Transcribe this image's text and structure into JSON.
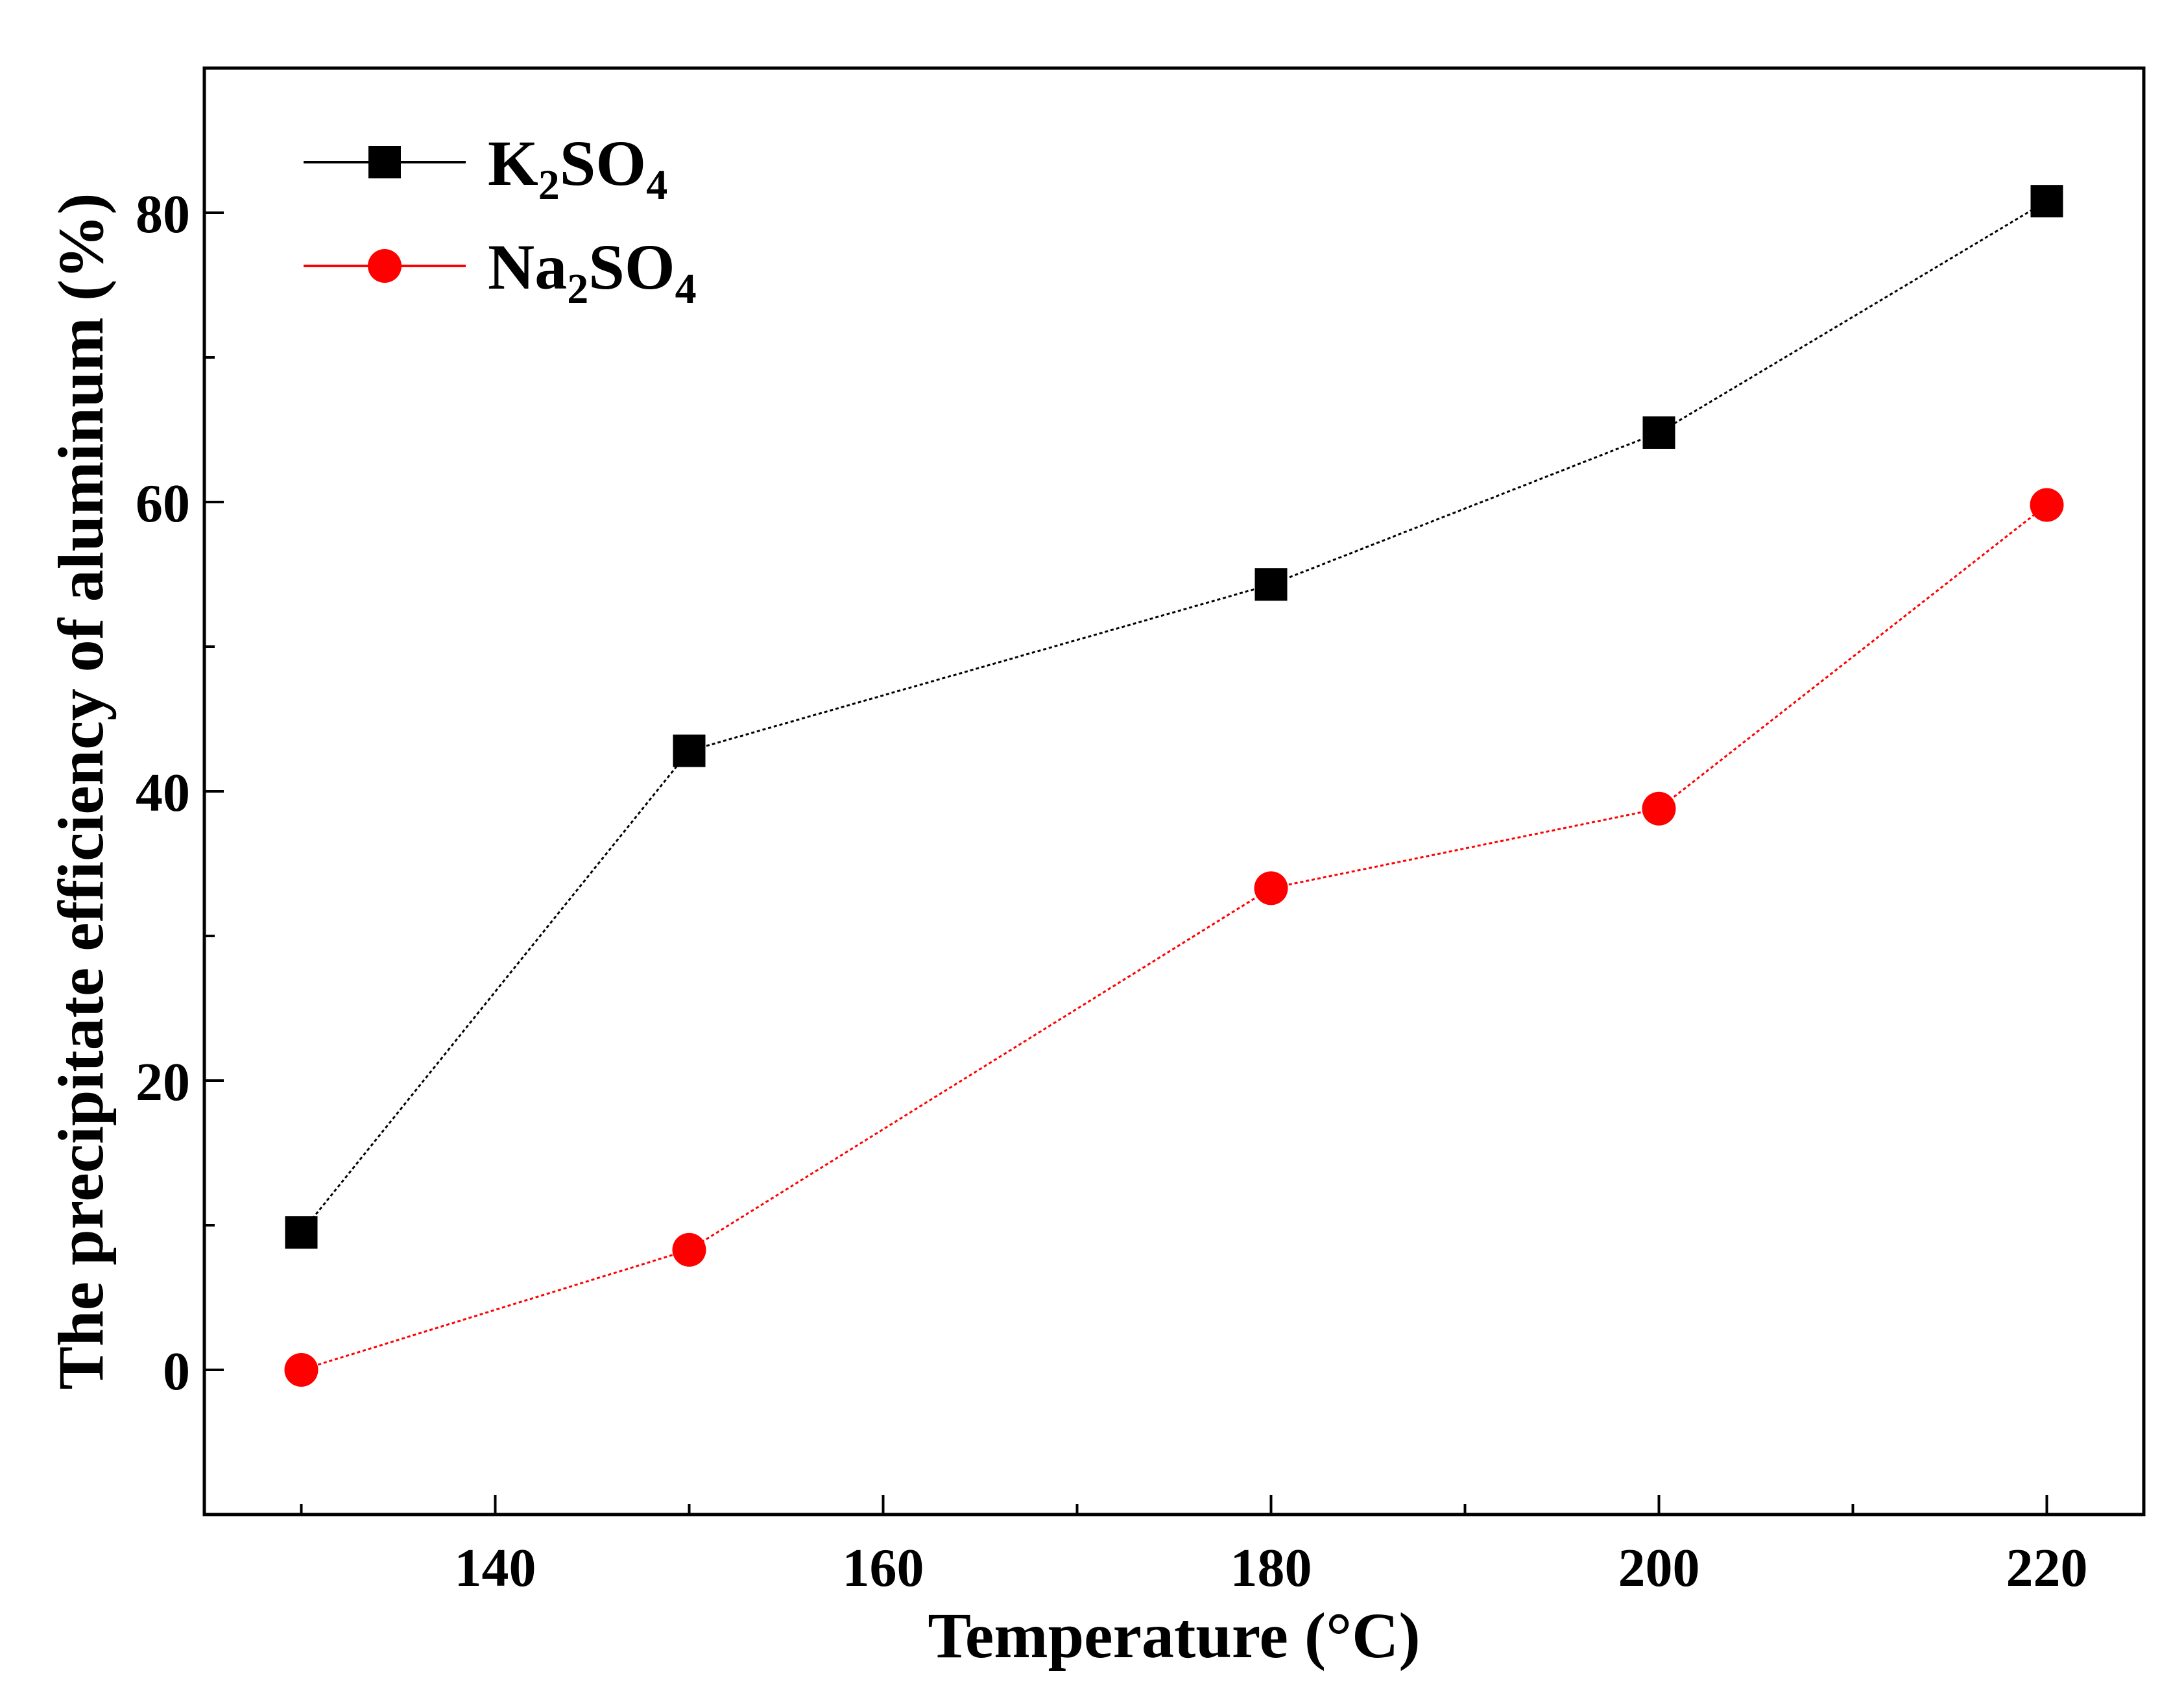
{
  "chart_data": {
    "type": "line",
    "title": "",
    "xlabel": "Temperature (°C)",
    "ylabel": "The precipitate efficiency of aluminum (%)",
    "xlim": [
      125,
      225
    ],
    "ylim": [
      -10,
      90
    ],
    "x_ticks": [
      140,
      160,
      180,
      200,
      220
    ],
    "x_minor_ticks": [
      130,
      150,
      170,
      190,
      210
    ],
    "y_ticks": [
      0,
      20,
      40,
      60,
      80
    ],
    "y_minor_ticks": [
      10,
      30,
      50,
      70
    ],
    "x": [
      130,
      150,
      180,
      200,
      220
    ],
    "legend_position": "top-left",
    "series": [
      {
        "name": "K2SO4",
        "label_parts": [
          {
            "text": "K",
            "sub": false
          },
          {
            "text": "2",
            "sub": true
          },
          {
            "text": "SO",
            "sub": false
          },
          {
            "text": "4",
            "sub": true
          }
        ],
        "color": "#000000",
        "marker": "square",
        "values": [
          9.5,
          42.8,
          54.3,
          64.8,
          80.8
        ]
      },
      {
        "name": "Na2SO4",
        "label_parts": [
          {
            "text": "Na",
            "sub": false
          },
          {
            "text": "2",
            "sub": true
          },
          {
            "text": "SO",
            "sub": false
          },
          {
            "text": "4",
            "sub": true
          }
        ],
        "color": "#ff0000",
        "marker": "circle",
        "values": [
          0,
          8.3,
          33.3,
          38.8,
          59.8
        ]
      }
    ]
  }
}
